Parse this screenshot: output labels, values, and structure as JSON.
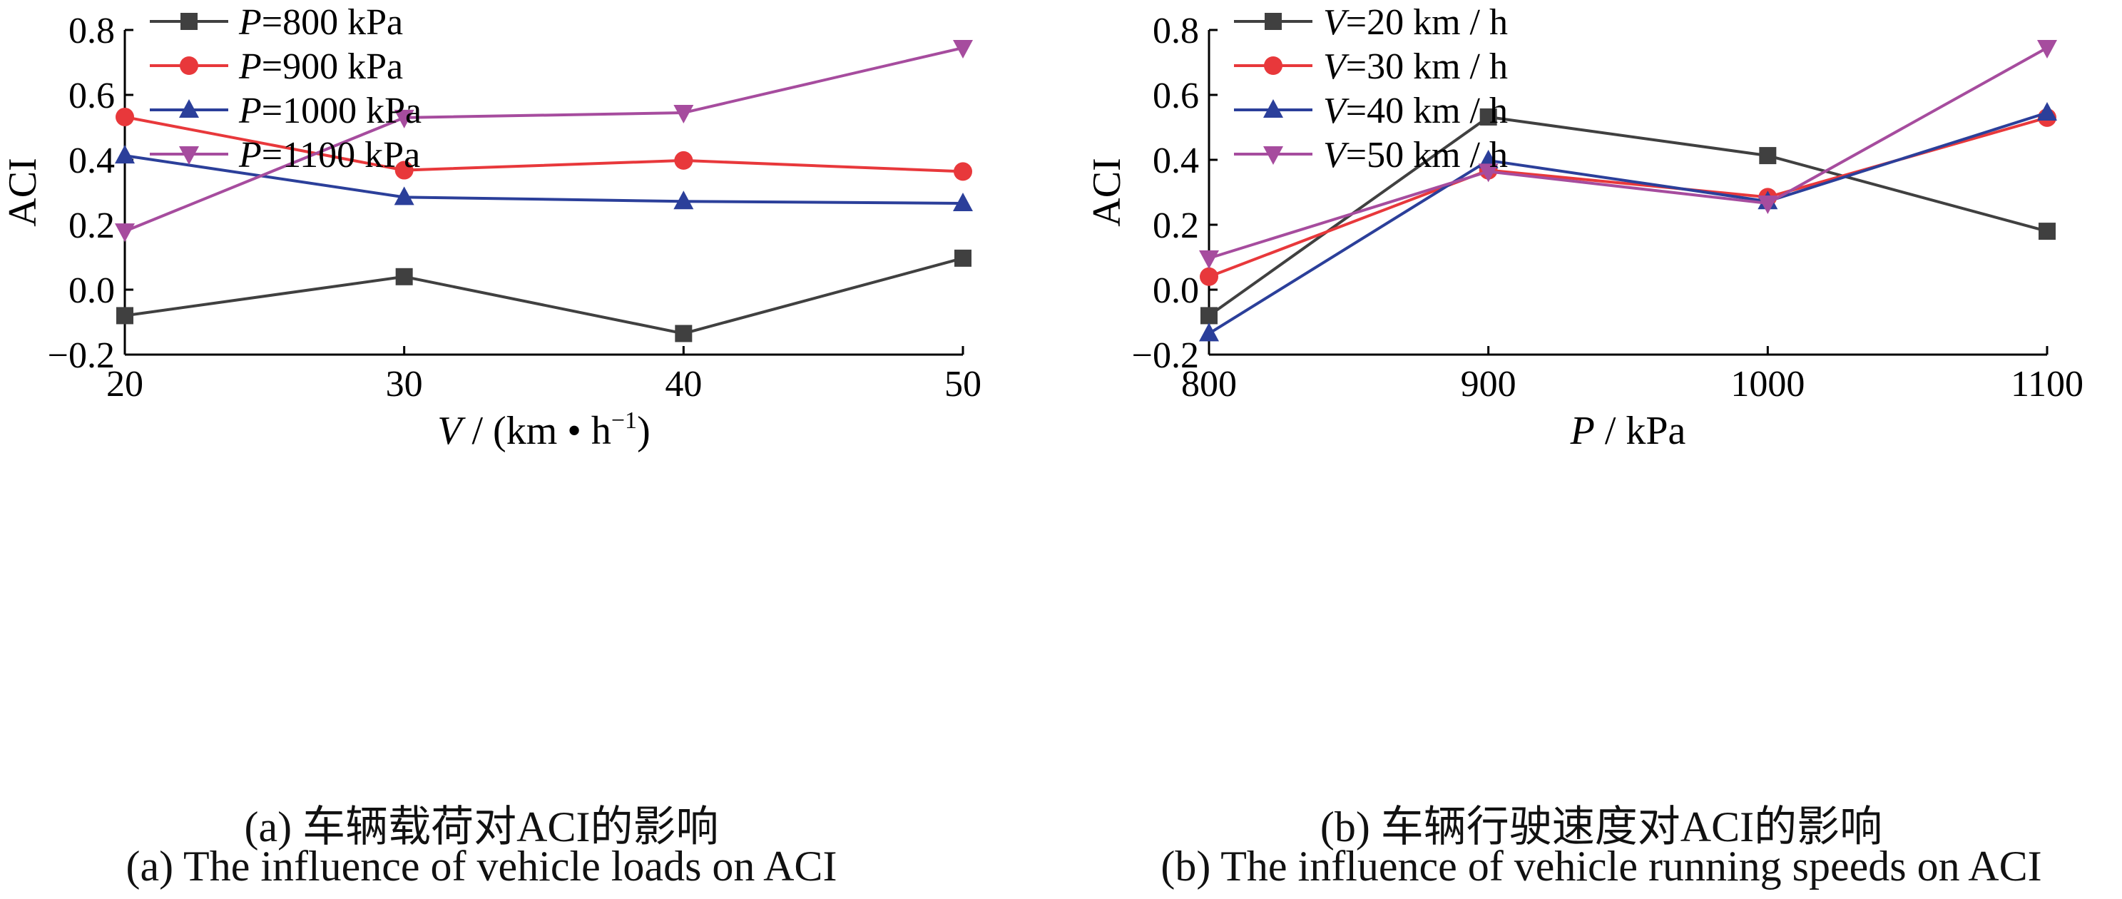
{
  "figure": {
    "panels": [
      {
        "caption_cn": "(a) 车辆载荷对ACI的影响",
        "caption_en": "(a) The influence of vehicle loads on ACI"
      },
      {
        "caption_cn": "(b) 车辆行驶速度对ACI的影响",
        "caption_en": "(b) The influence of vehicle running speeds on ACI"
      }
    ]
  },
  "chart_data": [
    {
      "type": "line",
      "xlabel": {
        "var": "V",
        "rest": " / (km • h",
        "sup": "−1",
        "close": ")"
      },
      "ylabel": "ACI",
      "x": [
        20,
        30,
        40,
        50
      ],
      "xlim": [
        20,
        50
      ],
      "xticks": [
        "20",
        "30",
        "40",
        "50"
      ],
      "ylim": [
        -0.2,
        0.8
      ],
      "yticks": [
        "−0.2",
        "0.0",
        "0.2",
        "0.4",
        "0.6",
        "0.8"
      ],
      "grid": false,
      "legend_position": "top-left",
      "series": [
        {
          "name_var": "P",
          "name_rest": "=800 kPa",
          "color": "#404040",
          "marker": "square",
          "values": [
            -0.08,
            0.04,
            -0.135,
            0.097
          ]
        },
        {
          "name_var": "P",
          "name_rest": "=900 kPa",
          "color": "#e8383b",
          "marker": "circle",
          "values": [
            0.532,
            0.368,
            0.398,
            0.364
          ]
        },
        {
          "name_var": "P",
          "name_rest": "=1000 kPa",
          "color": "#2b3f9a",
          "marker": "triangle-up",
          "values": [
            0.413,
            0.285,
            0.272,
            0.266
          ]
        },
        {
          "name_var": "P",
          "name_rest": "=1100 kPa",
          "color": "#a64c9e",
          "marker": "triangle-down",
          "values": [
            0.18,
            0.53,
            0.545,
            0.745
          ]
        }
      ]
    },
    {
      "type": "line",
      "xlabel": {
        "var": "P",
        "rest": " / kPa",
        "sup": "",
        "close": ""
      },
      "ylabel": "ACI",
      "x": [
        800,
        900,
        1000,
        1100
      ],
      "xlim": [
        800,
        1100
      ],
      "xticks": [
        "800",
        "900",
        "1000",
        "1100"
      ],
      "ylim": [
        -0.2,
        0.8
      ],
      "yticks": [
        "−0.2",
        "0.0",
        "0.2",
        "0.4",
        "0.6",
        "0.8"
      ],
      "grid": false,
      "legend_position": "top-left",
      "series": [
        {
          "name_var": "V",
          "name_rest": "=20 km / h",
          "color": "#404040",
          "marker": "square",
          "values": [
            -0.08,
            0.532,
            0.413,
            0.18
          ]
        },
        {
          "name_var": "V",
          "name_rest": "=30 km / h",
          "color": "#e8383b",
          "marker": "circle",
          "values": [
            0.04,
            0.368,
            0.285,
            0.53
          ]
        },
        {
          "name_var": "V",
          "name_rest": "=40 km / h",
          "color": "#2b3f9a",
          "marker": "triangle-up",
          "values": [
            -0.135,
            0.398,
            0.272,
            0.545
          ]
        },
        {
          "name_var": "V",
          "name_rest": "=50 km / h",
          "color": "#a64c9e",
          "marker": "triangle-down",
          "values": [
            0.097,
            0.364,
            0.266,
            0.745
          ]
        }
      ]
    }
  ]
}
